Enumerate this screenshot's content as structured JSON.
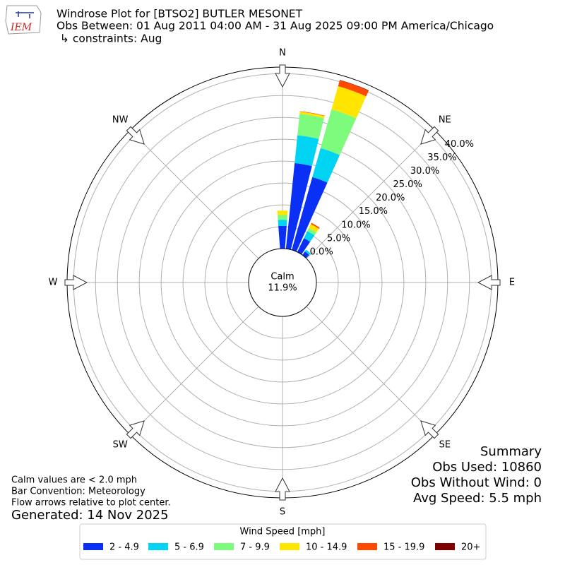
{
  "chart_data": {
    "type": "windrose",
    "logo_text": "IEM",
    "title_lines": [
      "Windrose Plot for [BTSO2] BUTLER MESONET",
      "Obs Between: 01 Aug 2011 04:00 AM - 31 Aug 2025 09:00 PM America/Chicago",
      " ↳ constraints: Aug"
    ],
    "compass_labels": [
      "N",
      "NE",
      "E",
      "SE",
      "S",
      "SW",
      "W",
      "NW"
    ],
    "calm": {
      "label": "Calm",
      "value": 11.9,
      "value_label": "11.9%"
    },
    "rlim": [
      0,
      41.5
    ],
    "rticks": [
      {
        "value": 0,
        "label": "0.0%"
      },
      {
        "value": 5,
        "label": "5.0%"
      },
      {
        "value": 10,
        "label": "10.0%"
      },
      {
        "value": 15,
        "label": "15.0%"
      },
      {
        "value": 20,
        "label": "20.0%"
      },
      {
        "value": 25,
        "label": "25.0%"
      },
      {
        "value": 30,
        "label": "30.0%"
      },
      {
        "value": 35,
        "label": "35.0%"
      },
      {
        "value": 40,
        "label": "40.0%"
      }
    ],
    "x": [
      0,
      10,
      20,
      30,
      40,
      50,
      60,
      70,
      80,
      90,
      100,
      110,
      120,
      130,
      140,
      150,
      160,
      170,
      180,
      190,
      200,
      210,
      220,
      230,
      240,
      250,
      260,
      270,
      280,
      290,
      300,
      310,
      320,
      330,
      340,
      350
    ],
    "series": [
      {
        "name": "2 - 4.9",
        "color": "#0a30f5",
        "values": [
          5.2,
          19.7,
          17.3,
          3.5,
          1.0,
          0,
          0,
          0,
          0,
          0,
          0,
          0,
          0,
          0,
          0,
          0,
          0,
          0,
          0,
          0,
          0,
          0,
          0,
          0,
          0,
          0,
          0,
          0,
          0,
          0,
          0,
          0,
          0,
          0,
          0,
          0
        ]
      },
      {
        "name": "5 - 6.9",
        "color": "#00d4f2",
        "values": [
          1.4,
          6.4,
          6.9,
          1.8,
          0.5,
          0,
          0,
          0,
          0,
          0,
          0,
          0,
          0,
          0,
          0,
          0,
          0,
          0,
          0,
          0,
          0,
          0,
          0,
          0,
          0,
          0,
          0,
          0,
          0,
          0,
          0,
          0,
          0,
          0,
          0,
          0
        ]
      },
      {
        "name": "7 - 9.9",
        "color": "#7dfb7d",
        "values": [
          1.1,
          4.9,
          9.2,
          0.8,
          0,
          0,
          0,
          0,
          0,
          0,
          0,
          0,
          0,
          0,
          0,
          0,
          0,
          0,
          0,
          0,
          0,
          0,
          0,
          0,
          0,
          0,
          0,
          0,
          0,
          0,
          0,
          0,
          0,
          0,
          0,
          0
        ]
      },
      {
        "name": "10 - 14.9",
        "color": "#ffe500",
        "values": [
          1.0,
          0.5,
          5.5,
          1.0,
          0,
          0,
          0,
          0,
          0,
          0,
          0,
          0,
          0,
          0,
          0,
          0,
          0,
          0,
          0,
          0,
          0,
          0,
          0,
          0,
          0,
          0,
          0,
          0,
          0,
          0,
          0,
          0,
          0,
          0,
          0,
          0
        ]
      },
      {
        "name": "15 - 19.9",
        "color": "#ff4a00",
        "values": [
          0,
          0.1,
          1.4,
          0.3,
          0,
          0,
          0,
          0,
          0,
          0,
          0,
          0,
          0,
          0,
          0,
          0,
          0,
          0,
          0,
          0,
          0,
          0,
          0,
          0,
          0,
          0,
          0,
          0,
          0,
          0,
          0,
          0,
          0,
          0,
          0,
          0
        ]
      },
      {
        "name": "20+",
        "color": "#800000",
        "values": [
          0,
          0,
          0.1,
          0,
          0,
          0,
          0,
          0,
          0,
          0,
          0,
          0,
          0,
          0,
          0,
          0,
          0,
          0,
          0,
          0,
          0,
          0,
          0,
          0,
          0,
          0,
          0,
          0,
          0,
          0,
          0,
          0,
          0,
          0,
          0,
          0
        ]
      }
    ],
    "legend_title": "Wind Speed [mph]",
    "summary": [
      "Summary",
      "Obs Used: 10860",
      "Obs Without Wind: 0",
      "Avg Speed: 5.5 mph"
    ],
    "notes": [
      "Calm values are < 2.0 mph",
      "Bar Convention: Meteorology",
      "Flow arrows relative to plot center."
    ],
    "generated": "Generated: 14 Nov 2025"
  }
}
